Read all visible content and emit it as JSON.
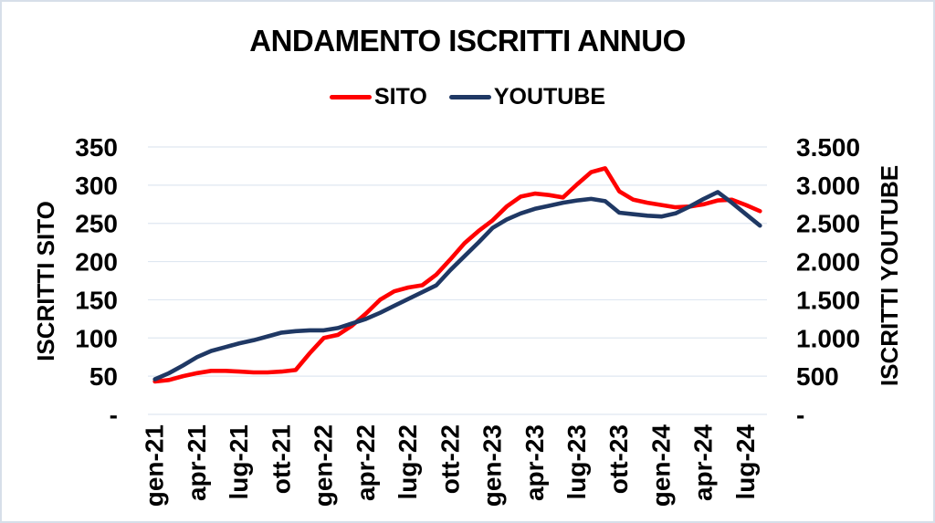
{
  "title": "ANDAMENTO ISCRITTI ANNUO",
  "legend": [
    {
      "label": "SITO",
      "color": "#ff0000"
    },
    {
      "label": "YOUTUBE",
      "color": "#1f3864"
    }
  ],
  "left_axis": {
    "title": "ISCRITTI SITO",
    "ticks": [
      "350",
      "300",
      "250",
      "200",
      "150",
      "100",
      "50",
      "-"
    ],
    "min": 0,
    "max": 350
  },
  "right_axis": {
    "title": "ISCRITTI YOUTUBE",
    "ticks": [
      "3.500",
      "3.000",
      "2.500",
      "2.000",
      "1.500",
      "1.000",
      "500",
      "-"
    ],
    "min": 0,
    "max": 3500
  },
  "chart_data": {
    "type": "line",
    "x": [
      "gen-21",
      "feb-21",
      "mar-21",
      "apr-21",
      "mag-21",
      "giu-21",
      "lug-21",
      "ago-21",
      "set-21",
      "ott-21",
      "nov-21",
      "dic-21",
      "gen-22",
      "feb-22",
      "mar-22",
      "apr-22",
      "mag-22",
      "giu-22",
      "lug-22",
      "ago-22",
      "set-22",
      "ott-22",
      "nov-22",
      "dic-22",
      "gen-23",
      "feb-23",
      "mar-23",
      "apr-23",
      "mag-23",
      "giu-23",
      "lug-23",
      "ago-23",
      "set-23",
      "ott-23",
      "nov-23",
      "dic-23",
      "gen-24",
      "feb-24",
      "mar-24",
      "apr-24",
      "mag-24",
      "giu-24",
      "lug-24",
      "ago-24"
    ],
    "x_tick_step": 3,
    "grid": true,
    "legend_position": "top",
    "series": [
      {
        "name": "SITO",
        "axis": "left",
        "color": "#ff0000",
        "values": [
          43,
          45,
          50,
          54,
          57,
          57,
          56,
          55,
          55,
          56,
          58,
          80,
          100,
          104,
          116,
          132,
          150,
          161,
          166,
          169,
          183,
          203,
          224,
          240,
          254,
          272,
          285,
          289,
          287,
          284,
          301,
          317,
          322,
          292,
          281,
          277,
          274,
          271,
          272,
          275,
          280,
          281,
          274,
          266
        ]
      },
      {
        "name": "YOUTUBE",
        "axis": "right",
        "color": "#1f3864",
        "values": [
          460,
          540,
          640,
          750,
          830,
          880,
          930,
          970,
          1020,
          1070,
          1090,
          1100,
          1100,
          1130,
          1190,
          1250,
          1330,
          1420,
          1510,
          1600,
          1690,
          1890,
          2070,
          2250,
          2440,
          2550,
          2630,
          2690,
          2730,
          2770,
          2800,
          2820,
          2790,
          2640,
          2620,
          2600,
          2590,
          2630,
          2720,
          2820,
          2910,
          2770,
          2620,
          2470
        ]
      }
    ]
  },
  "colors": {
    "grid": "#dfe7f1",
    "text": "#000000",
    "page_border": "#d7dfe9",
    "background": "#ffffff"
  }
}
